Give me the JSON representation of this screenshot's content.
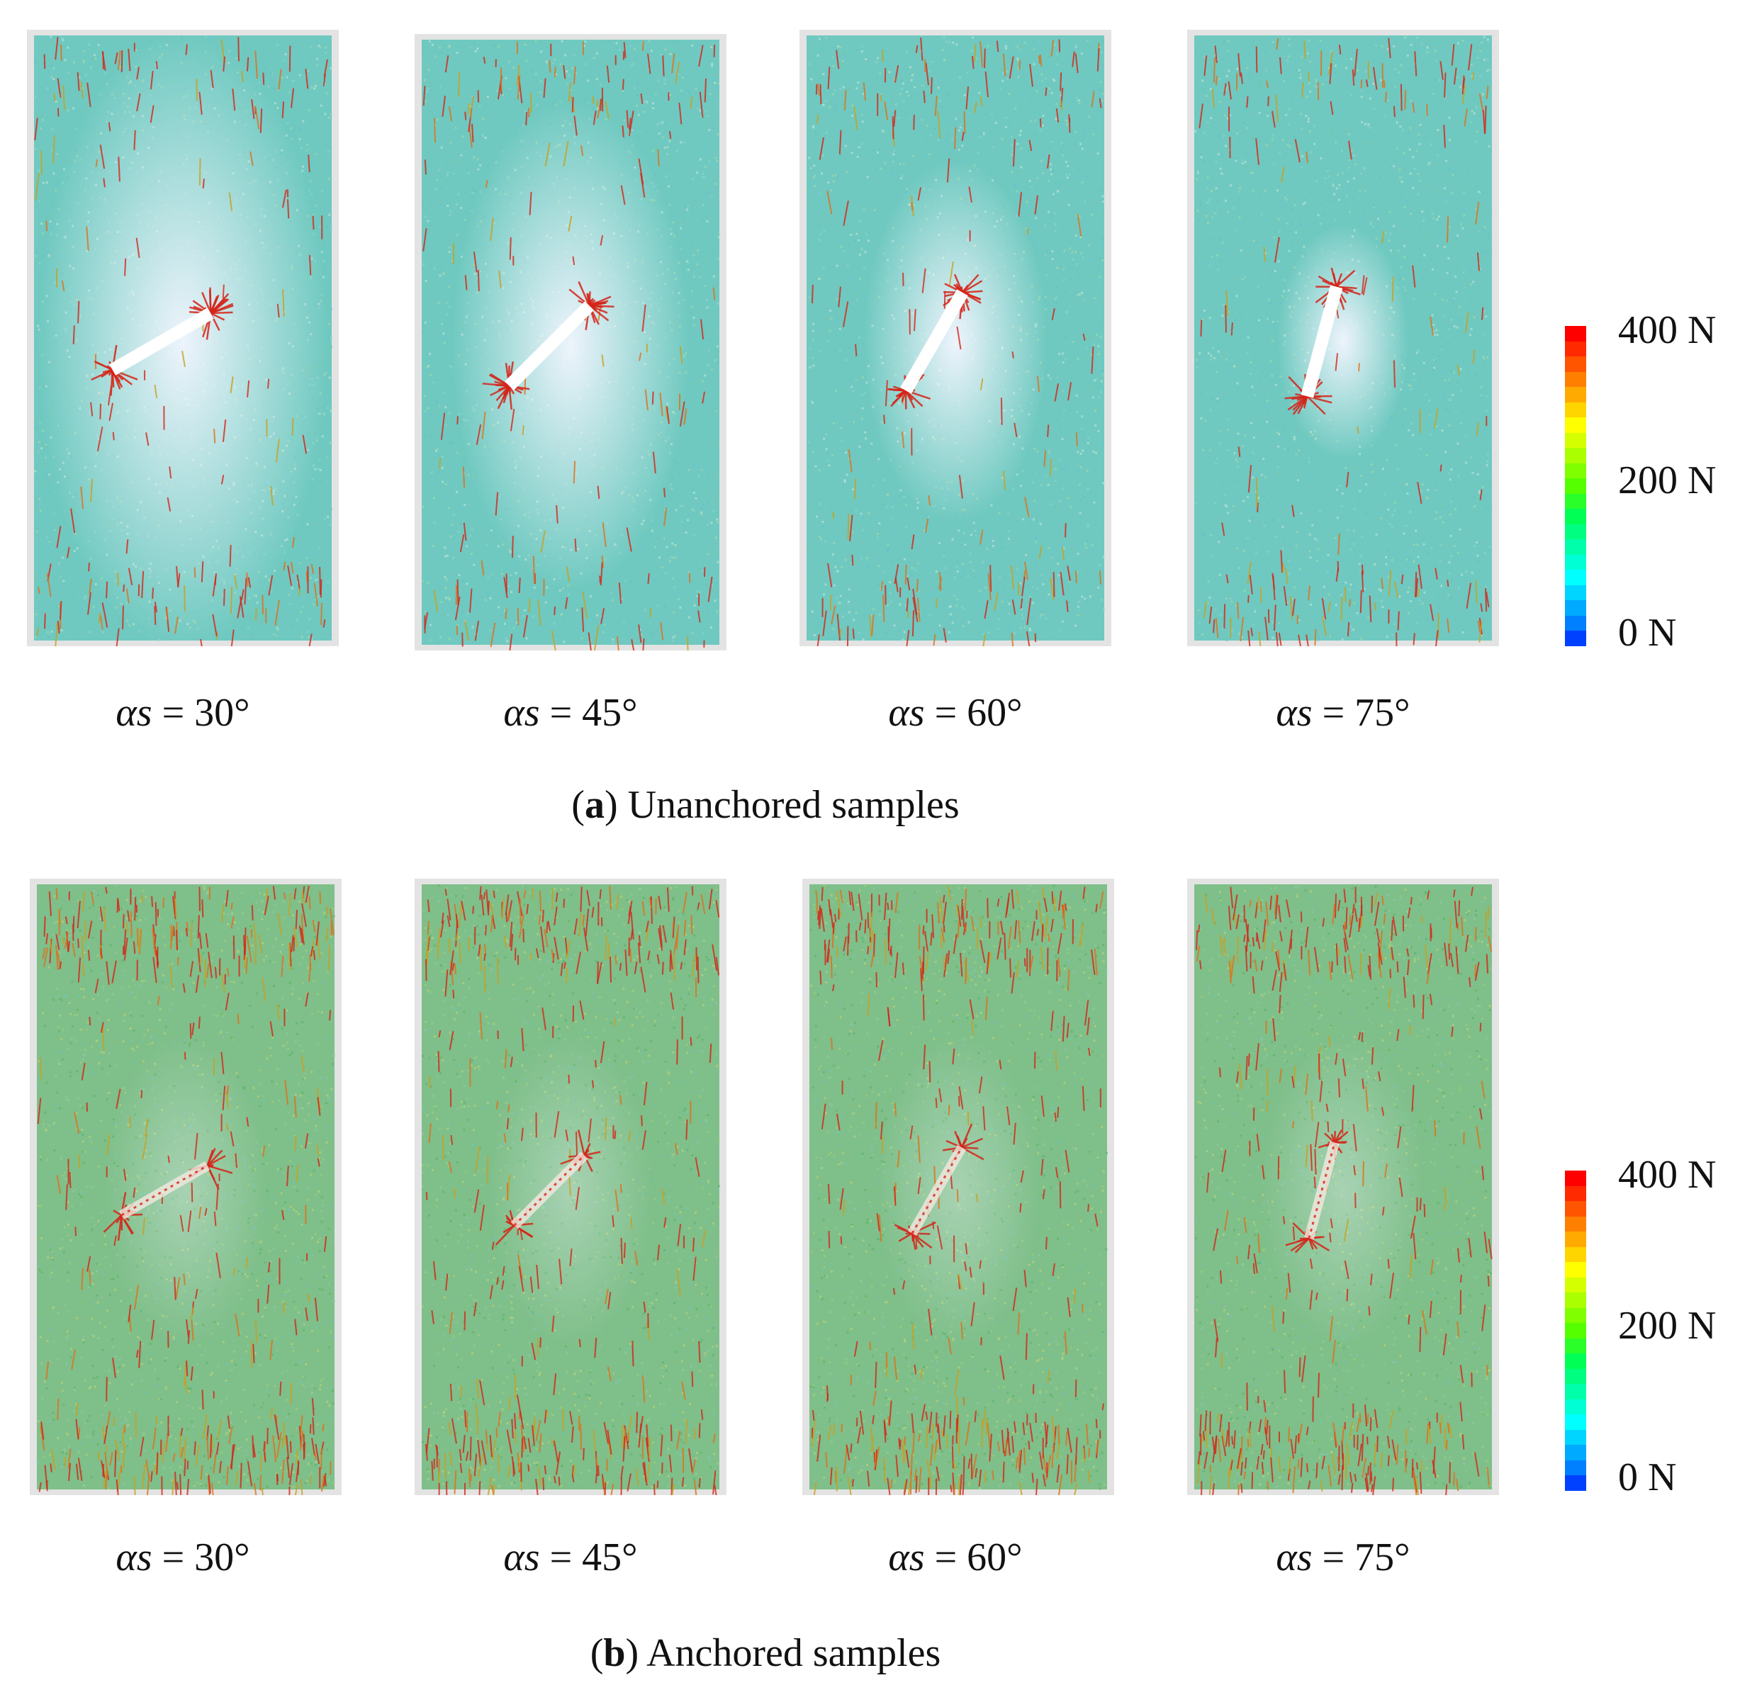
{
  "colors": {
    "matrix_unanchored": "#6fc9c0",
    "matrix_anchored": "#7fbf8a",
    "chain_high": "#d62418",
    "stress_free": "#f4f6ff",
    "frame": "#e3e3e3"
  },
  "colorbar": {
    "max_label": "400 N",
    "mid_label": "200 N",
    "min_label": "0 N",
    "stops": [
      "#ff0000",
      "#ff2a00",
      "#ff5500",
      "#ff8000",
      "#ffaa00",
      "#ffd500",
      "#ffff00",
      "#d4ff00",
      "#aaff00",
      "#80ff00",
      "#55ff00",
      "#2aff2a",
      "#00ff55",
      "#00ff80",
      "#00ffaa",
      "#00ffd5",
      "#00ffff",
      "#00d5ff",
      "#00aaff",
      "#0080ff",
      "#0040ff"
    ]
  },
  "panels": [
    {
      "id": "a",
      "letter": "a",
      "title": " Unanchored samples",
      "samples": [
        {
          "symbol": "αs",
          "value": " = 30°",
          "angle_deg": 30
        },
        {
          "symbol": "αs",
          "value": " = 45°",
          "angle_deg": 45
        },
        {
          "symbol": "αs",
          "value": " = 60°",
          "angle_deg": 60
        },
        {
          "symbol": "αs",
          "value": " = 75°",
          "angle_deg": 75
        }
      ]
    },
    {
      "id": "b",
      "letter": "b",
      "title": " Anchored samples",
      "samples": [
        {
          "symbol": "αs",
          "value": " = 30°",
          "angle_deg": 30
        },
        {
          "symbol": "αs",
          "value": " = 45°",
          "angle_deg": 45
        },
        {
          "symbol": "αs",
          "value": " = 60°",
          "angle_deg": 60
        },
        {
          "symbol": "αs",
          "value": " = 75°",
          "angle_deg": 75
        }
      ]
    }
  ]
}
